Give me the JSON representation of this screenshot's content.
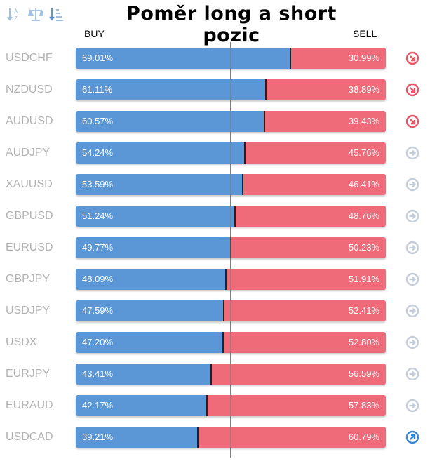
{
  "title": "Poměr long a short pozic",
  "toolbar": [
    "sort-alpha-icon",
    "balance-icon",
    "sort-amount-icon"
  ],
  "headers": {
    "buy": "BUY",
    "sell": "SELL"
  },
  "colors": {
    "buy": "#5b97d6",
    "sell": "#ef6b7a",
    "down": "#e8566a",
    "neutral": "#c5cdd9",
    "up": "#3a86d4"
  },
  "rows": [
    {
      "symbol": "USDCHF",
      "buy": "69.01%",
      "sell": "30.99%",
      "buy_value": 69.01,
      "trend": "down"
    },
    {
      "symbol": "NZDUSD",
      "buy": "61.11%",
      "sell": "38.89%",
      "buy_value": 61.11,
      "trend": "down"
    },
    {
      "symbol": "AUDUSD",
      "buy": "60.57%",
      "sell": "39.43%",
      "buy_value": 60.57,
      "trend": "down"
    },
    {
      "symbol": "AUDJPY",
      "buy": "54.24%",
      "sell": "45.76%",
      "buy_value": 54.24,
      "trend": "neutral"
    },
    {
      "symbol": "XAUUSD",
      "buy": "53.59%",
      "sell": "46.41%",
      "buy_value": 53.59,
      "trend": "neutral"
    },
    {
      "symbol": "GBPUSD",
      "buy": "51.24%",
      "sell": "48.76%",
      "buy_value": 51.24,
      "trend": "neutral"
    },
    {
      "symbol": "EURUSD",
      "buy": "49.77%",
      "sell": "50.23%",
      "buy_value": 49.77,
      "trend": "neutral"
    },
    {
      "symbol": "GBPJPY",
      "buy": "48.09%",
      "sell": "51.91%",
      "buy_value": 48.09,
      "trend": "neutral"
    },
    {
      "symbol": "USDJPY",
      "buy": "47.59%",
      "sell": "52.41%",
      "buy_value": 47.59,
      "trend": "neutral"
    },
    {
      "symbol": "USDX",
      "buy": "47.20%",
      "sell": "52.80%",
      "buy_value": 47.2,
      "trend": "neutral"
    },
    {
      "symbol": "EURJPY",
      "buy": "43.41%",
      "sell": "56.59%",
      "buy_value": 43.41,
      "trend": "neutral"
    },
    {
      "symbol": "EURAUD",
      "buy": "42.17%",
      "sell": "57.83%",
      "buy_value": 42.17,
      "trend": "neutral"
    },
    {
      "symbol": "USDCAD",
      "buy": "39.21%",
      "sell": "60.79%",
      "buy_value": 39.21,
      "trend": "up"
    }
  ]
}
